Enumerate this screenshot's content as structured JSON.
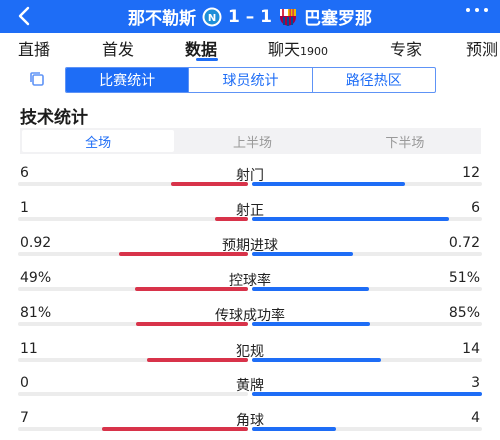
{
  "header": {
    "home_team": "那不勒斯",
    "score": "1 – 1",
    "away_team": "巴塞罗那",
    "home_badge_letter": "N"
  },
  "tabs": [
    {
      "label": "直播",
      "active": false
    },
    {
      "label": "首发",
      "active": false
    },
    {
      "label": "数据",
      "active": true
    },
    {
      "label": "聊天",
      "sub": "1900",
      "active": false
    },
    {
      "label": "专家",
      "active": false
    },
    {
      "label": "预测",
      "active": false
    }
  ],
  "subtabs": [
    {
      "label": "比赛统计",
      "active": true
    },
    {
      "label": "球员统计",
      "active": false
    },
    {
      "label": "路径热区",
      "active": false
    }
  ],
  "section_title": "技术统计",
  "periods": [
    {
      "label": "全场",
      "active": true
    },
    {
      "label": "上半场",
      "active": false
    },
    {
      "label": "下半场",
      "active": false
    }
  ],
  "stats": [
    {
      "name": "射门",
      "home": "6",
      "away": "12",
      "home_share": 0.333,
      "away_share": 0.667
    },
    {
      "name": "射正",
      "home": "1",
      "away": "6",
      "home_share": 0.143,
      "away_share": 0.857
    },
    {
      "name": "预期进球",
      "home": "0.92",
      "away": "0.72",
      "home_share": 0.561,
      "away_share": 0.439
    },
    {
      "name": "控球率",
      "home": "49%",
      "away": "51%",
      "home_share": 0.49,
      "away_share": 0.51
    },
    {
      "name": "传球成功率",
      "home": "81%",
      "away": "85%",
      "home_share": 0.488,
      "away_share": 0.512
    },
    {
      "name": "犯规",
      "home": "11",
      "away": "14",
      "home_share": 0.44,
      "away_share": 0.56
    },
    {
      "name": "黄牌",
      "home": "0",
      "away": "3",
      "home_share": 0.0,
      "away_share": 1.0
    },
    {
      "name": "角球",
      "home": "7",
      "away": "4",
      "home_share": 0.636,
      "away_share": 0.364
    }
  ],
  "colors": {
    "primary": "#1e6df6",
    "home_bar": "#d8334a",
    "away_bar": "#1e6df6",
    "track": "#ececec"
  }
}
